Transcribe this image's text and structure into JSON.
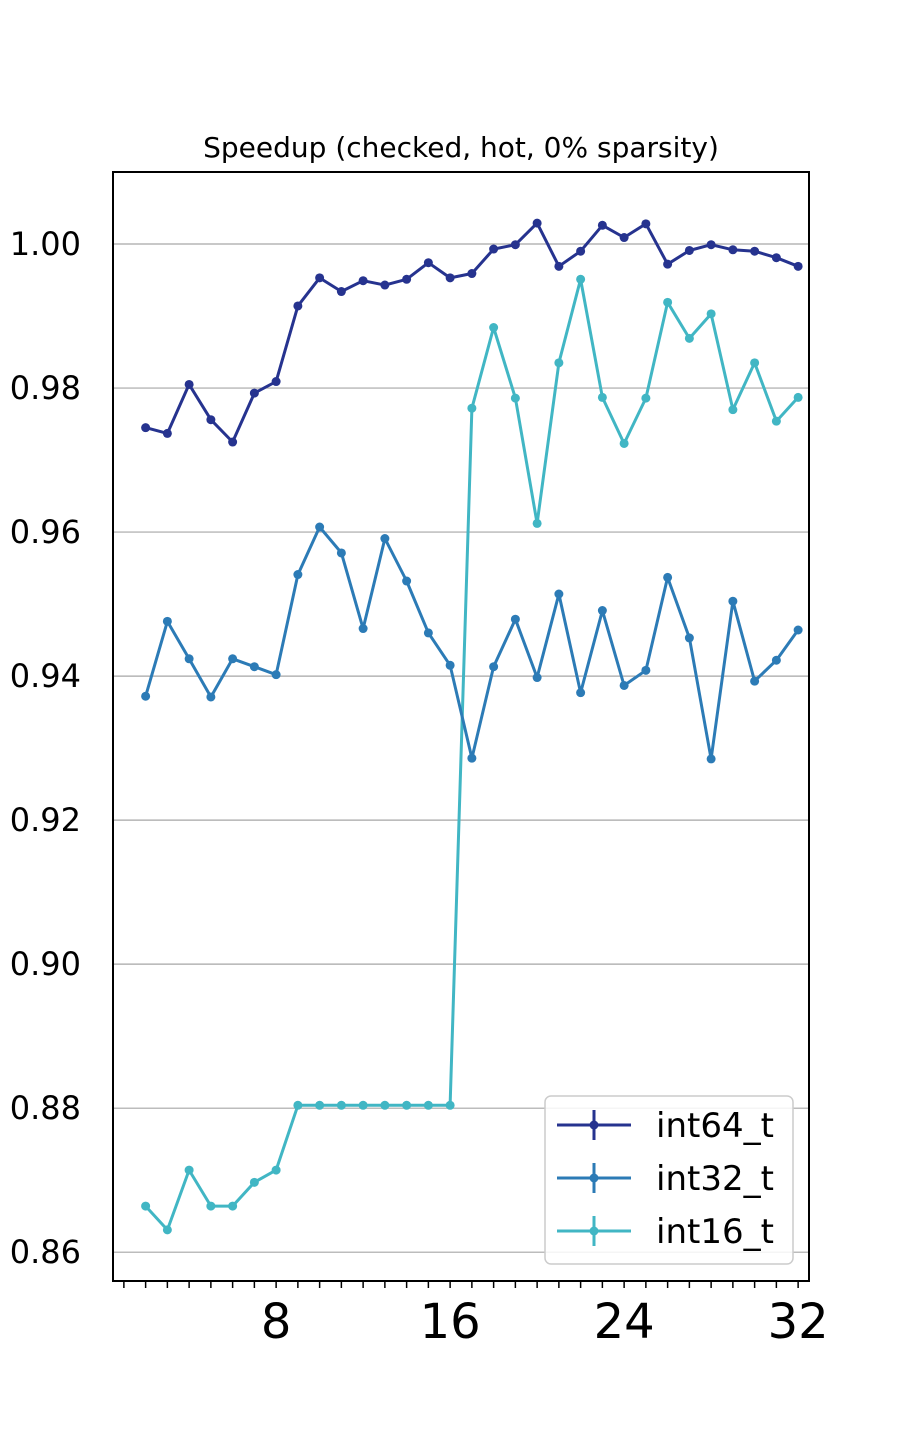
{
  "chart_data": {
    "type": "line",
    "title": "Speedup (checked, hot, 0% sparsity)",
    "xlabel": "",
    "ylabel": "",
    "xlim": [
      0.5,
      32.5
    ],
    "ylim": [
      0.856,
      1.01
    ],
    "xticks": [
      8,
      16,
      24,
      32
    ],
    "xtick_labels": [
      "8",
      "16",
      "24",
      "32"
    ],
    "yticks": [
      0.86,
      0.88,
      0.9,
      0.92,
      0.94,
      0.96,
      0.98,
      1.0
    ],
    "ytick_labels": [
      "0.86",
      "0.88",
      "0.90",
      "0.92",
      "0.94",
      "0.96",
      "0.98",
      "1.00"
    ],
    "grid": "horizontal",
    "legend_position": "lower-right",
    "x": [
      2,
      3,
      4,
      5,
      6,
      7,
      8,
      9,
      10,
      11,
      12,
      13,
      14,
      15,
      16,
      17,
      18,
      19,
      20,
      21,
      22,
      23,
      24,
      25,
      26,
      27,
      28,
      29,
      30,
      31,
      32
    ],
    "series": [
      {
        "name": "int64_t",
        "color": "#26338f",
        "values": [
          0.9745,
          0.9737,
          0.9805,
          0.9756,
          0.9725,
          0.9793,
          0.9809,
          0.9914,
          0.9953,
          0.9934,
          0.9949,
          0.9943,
          0.9951,
          0.9974,
          0.9953,
          0.9959,
          0.9993,
          0.9999,
          1.0029,
          0.9969,
          0.999,
          1.0026,
          1.0009,
          1.0028,
          0.9972,
          0.9991,
          0.9999,
          0.9992,
          0.999,
          0.9981,
          0.9969
        ]
      },
      {
        "name": "int32_t",
        "color": "#2c7bb6",
        "values": [
          0.9372,
          0.9476,
          0.9424,
          0.9371,
          0.9424,
          0.9413,
          0.9402,
          0.9541,
          0.9607,
          0.9571,
          0.9466,
          0.9591,
          0.9532,
          0.946,
          0.9415,
          0.9286,
          0.9413,
          0.9479,
          0.9398,
          0.9514,
          0.9377,
          0.9491,
          0.9387,
          0.9408,
          0.9537,
          0.9453,
          0.9285,
          0.9504,
          0.9393,
          0.9422,
          0.9464
        ]
      },
      {
        "name": "int16_t",
        "color": "#41b6c4",
        "values": [
          0.8664,
          0.8631,
          0.8714,
          0.8664,
          0.8664,
          0.8697,
          0.8714,
          0.8804,
          0.8804,
          0.8804,
          0.8804,
          0.8804,
          0.8804,
          0.8804,
          0.8804,
          0.9772,
          0.9884,
          0.9786,
          0.9612,
          0.9835,
          0.9951,
          0.9787,
          0.9723,
          0.9786,
          0.9919,
          0.9869,
          0.9903,
          0.977,
          0.9835,
          0.9754,
          0.9787
        ]
      }
    ]
  }
}
